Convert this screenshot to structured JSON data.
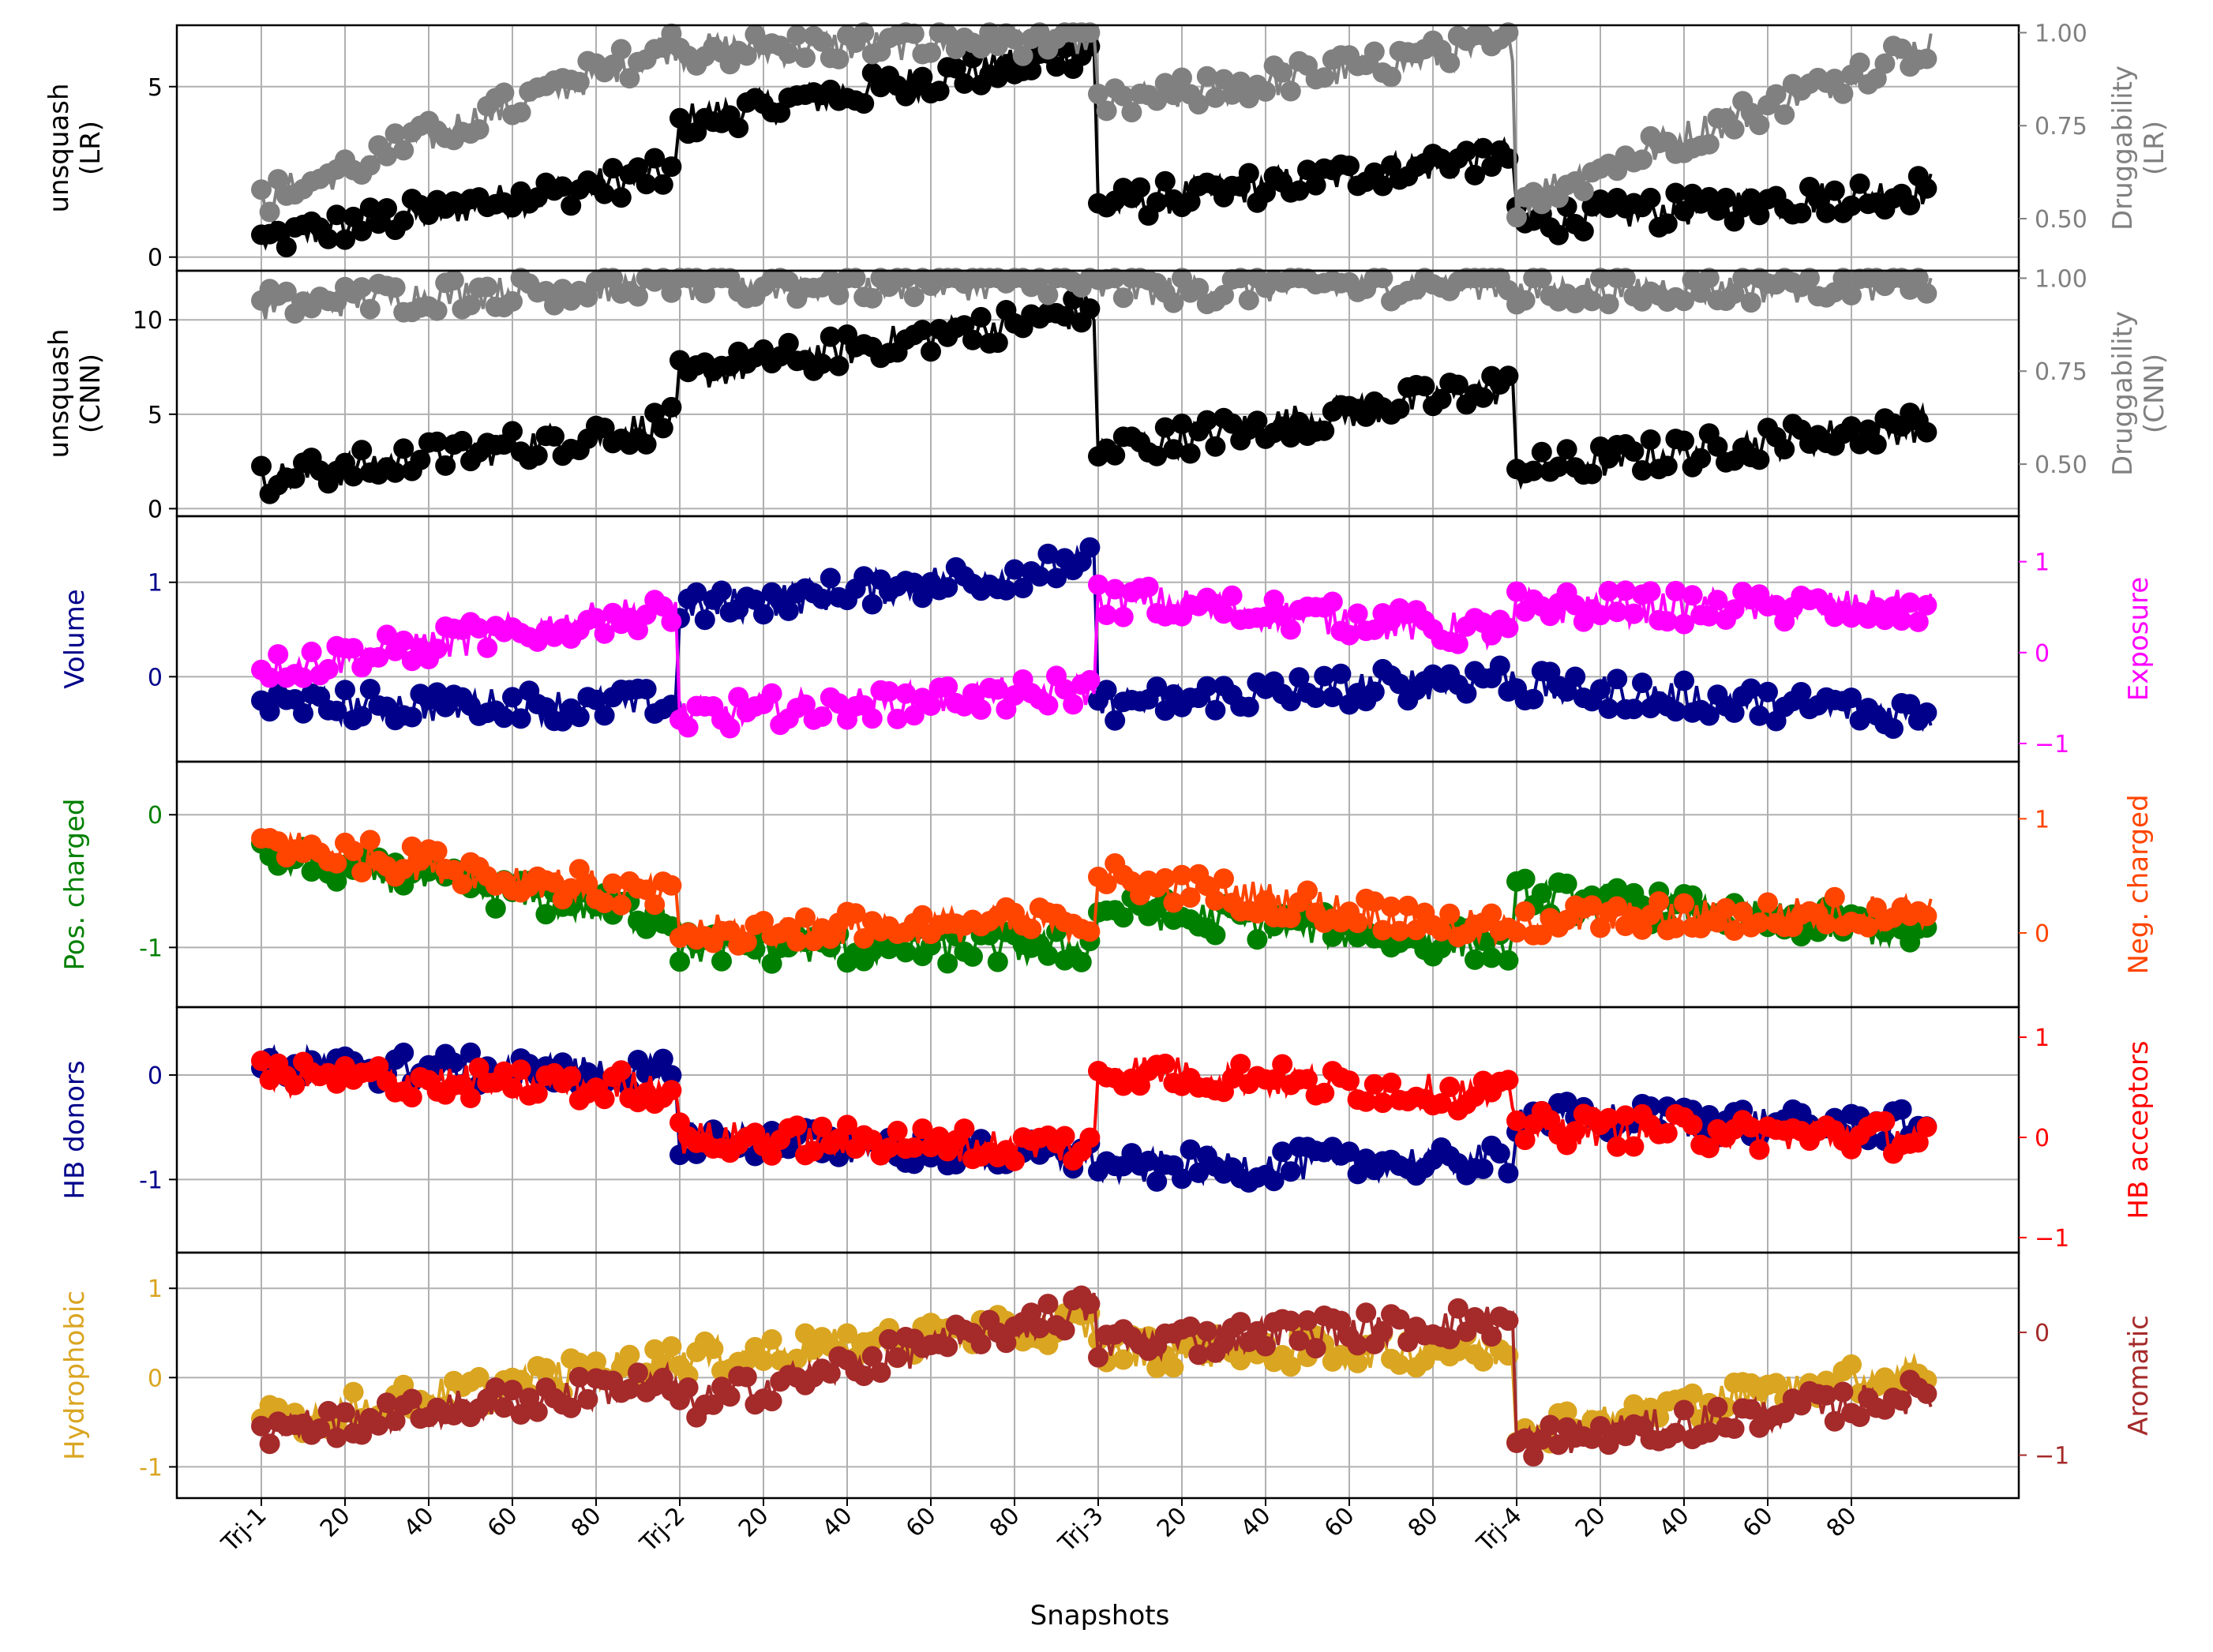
{
  "chart_data": {
    "type": "line",
    "xlabel": "Snapshots",
    "x_tick_labels": [
      "Trj-1",
      "20",
      "40",
      "60",
      "80",
      "Trj-2",
      "20",
      "40",
      "60",
      "80",
      "Trj-3",
      "20",
      "40",
      "60",
      "80",
      "Trj-4",
      "20",
      "40",
      "60",
      "80"
    ],
    "trajectory_starts": [
      0,
      100,
      200,
      300
    ],
    "snapshots_per_trajectory": 100,
    "panels": [
      {
        "id": "lr",
        "left": {
          "label": "unsquash\n(LR)",
          "color": "#000000",
          "ylim": [
            -0.4,
            6.8
          ],
          "ticks": [
            0,
            5
          ],
          "segments": [
            [
              0.5,
              2.5
            ],
            [
              4.0,
              6.0
            ],
            [
              1.5,
              3.0
            ],
            [
              1.0,
              2.0
            ]
          ]
        },
        "right": {
          "label": "Druggability\n(LR)",
          "color": "#808080",
          "ylim": [
            0.36,
            1.02
          ],
          "ticks": [
            0.5,
            0.75,
            1.0
          ],
          "segments": [
            [
              0.55,
              0.97
            ],
            [
              0.95,
              0.99
            ],
            [
              0.8,
              0.97
            ],
            [
              0.55,
              0.97
            ]
          ]
        }
      },
      {
        "id": "cnn",
        "left": {
          "label": "unsquash\n(CNN)",
          "color": "#000000",
          "ylim": [
            -0.4,
            12.6
          ],
          "ticks": [
            0,
            5,
            10
          ],
          "segments": [
            [
              1.5,
              4.5
            ],
            [
              7.0,
              10.5
            ],
            [
              3.0,
              6.5
            ],
            [
              2.0,
              4.5
            ]
          ]
        },
        "right": {
          "label": "Druggability\n(CNN)",
          "color": "#808080",
          "ylim": [
            0.36,
            1.02
          ],
          "ticks": [
            0.5,
            0.75,
            1.0
          ],
          "segments": [
            [
              0.93,
              0.99
            ],
            [
              0.98,
              0.99
            ],
            [
              0.97,
              0.99
            ],
            [
              0.96,
              0.99
            ]
          ]
        }
      },
      {
        "id": "volume",
        "left": {
          "label": "Volume",
          "color": "#00008B",
          "ylim": [
            -0.9,
            1.7
          ],
          "ticks": [
            0,
            1
          ],
          "segments": [
            [
              -0.3,
              -0.3
            ],
            [
              0.7,
              1.2
            ],
            [
              -0.3,
              0.0
            ],
            [
              -0.1,
              -0.4
            ]
          ]
        },
        "right": {
          "label": "Exposure",
          "color": "#FF00FF",
          "ylim": [
            -1.2,
            1.5
          ],
          "ticks": [
            -1,
            0,
            1
          ],
          "segments": [
            [
              -0.2,
              0.5
            ],
            [
              -0.7,
              -0.4
            ],
            [
              0.6,
              0.2
            ],
            [
              0.5,
              0.5
            ]
          ]
        }
      },
      {
        "id": "charged",
        "left": {
          "label": "Pos. charged",
          "color": "#008000",
          "ylim": [
            -1.45,
            0.4
          ],
          "ticks": [
            -1,
            0
          ],
          "segments": [
            [
              -0.3,
              -0.8
            ],
            [
              -1.0,
              -1.0
            ],
            [
              -0.7,
              -1.0
            ],
            [
              -0.6,
              -0.9
            ]
          ]
        },
        "right": {
          "label": "Neg. charged",
          "color": "#FF4500",
          "ylim": [
            -0.65,
            1.5
          ],
          "ticks": [
            0,
            1
          ],
          "segments": [
            [
              0.8,
              0.3
            ],
            [
              0.0,
              0.1
            ],
            [
              0.5,
              0.0
            ],
            [
              0.1,
              0.2
            ]
          ]
        }
      },
      {
        "id": "hb",
        "left": {
          "label": "HB donors",
          "color": "#00008B",
          "ylim": [
            -1.7,
            0.65
          ],
          "ticks": [
            -1,
            0
          ],
          "segments": [
            [
              0.1,
              0.0
            ],
            [
              -0.6,
              -0.8
            ],
            [
              -0.9,
              -0.8
            ],
            [
              -0.4,
              -0.5
            ]
          ]
        },
        "right": {
          "label": "HB acceptors",
          "color": "#FF0000",
          "ylim": [
            -1.15,
            1.3
          ],
          "ticks": [
            -1,
            0,
            1
          ],
          "segments": [
            [
              0.6,
              0.5
            ],
            [
              0.0,
              -0.1
            ],
            [
              0.7,
              0.4
            ],
            [
              0.1,
              0.0
            ]
          ]
        }
      },
      {
        "id": "hydro",
        "left": {
          "label": "Hydrophobic",
          "color": "#DAA520",
          "ylim": [
            -1.35,
            1.4
          ],
          "ticks": [
            -1,
            0,
            1
          ],
          "segments": [
            [
              -0.5,
              0.2
            ],
            [
              0.2,
              0.6
            ],
            [
              0.3,
              0.3
            ],
            [
              -0.6,
              0.1
            ]
          ]
        },
        "right": {
          "label": "Aromatic",
          "color": "#A52A2A",
          "ylim": [
            -1.35,
            0.65
          ],
          "ticks": [
            -1,
            0
          ],
          "segments": [
            [
              -0.8,
              -0.4
            ],
            [
              -0.6,
              0.2
            ],
            [
              -0.1,
              0.1
            ],
            [
              -0.9,
              -0.5
            ]
          ]
        }
      }
    ]
  }
}
